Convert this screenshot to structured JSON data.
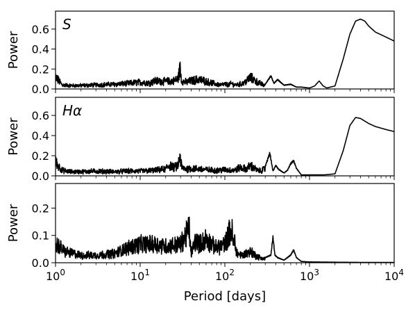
{
  "chart_data": [
    {
      "type": "line",
      "panel_label": "S",
      "ylabel": "Power",
      "xlabel": "",
      "xscale": "log",
      "xlim": [
        1,
        10000
      ],
      "ylim": [
        0,
        0.78
      ],
      "yticks": [
        0.0,
        0.2,
        0.4,
        0.6
      ],
      "ytick_labels": [
        "0.0",
        "0.2",
        "0.4",
        "0.6"
      ],
      "noise_level": 0.05,
      "series": [
        {
          "x": [
            1,
            1.2,
            1.5,
            2,
            3,
            5,
            7,
            10,
            13,
            15,
            20,
            25,
            28,
            29.5,
            31,
            35,
            40,
            50,
            60,
            70,
            80,
            90,
            100,
            110,
            120,
            130,
            150,
            170,
            200,
            250,
            300,
            350,
            380,
            420,
            500,
            600,
            700,
            800,
            1000,
            1150,
            1300,
            1450,
            1600,
            2000,
            2500,
            3000,
            3500,
            4000,
            4500,
            5000,
            6000,
            8000,
            10000
          ],
          "y": [
            0.18,
            0.06,
            0.05,
            0.05,
            0.06,
            0.07,
            0.08,
            0.1,
            0.09,
            0.12,
            0.11,
            0.12,
            0.15,
            0.3,
            0.12,
            0.1,
            0.12,
            0.14,
            0.11,
            0.09,
            0.07,
            0.06,
            0.07,
            0.06,
            0.08,
            0.06,
            0.07,
            0.09,
            0.17,
            0.09,
            0.05,
            0.14,
            0.06,
            0.1,
            0.04,
            0.05,
            0.02,
            0.02,
            0.01,
            0.03,
            0.08,
            0.03,
            0.01,
            0.03,
            0.3,
            0.55,
            0.68,
            0.7,
            0.68,
            0.63,
            0.57,
            0.52,
            0.48
          ]
        }
      ]
    },
    {
      "type": "line",
      "panel_label": "Hα",
      "ylabel": "Power",
      "xlabel": "",
      "xscale": "log",
      "xlim": [
        1,
        10000
      ],
      "ylim": [
        0,
        0.78
      ],
      "yticks": [
        0.0,
        0.2,
        0.4,
        0.6
      ],
      "ytick_labels": [
        "0.0",
        "0.2",
        "0.4",
        "0.6"
      ],
      "noise_level": 0.05,
      "series": [
        {
          "x": [
            1,
            1.2,
            1.5,
            2,
            3,
            5,
            7,
            10,
            15,
            20,
            22,
            25,
            28,
            29.5,
            31,
            35,
            40,
            50,
            60,
            80,
            100,
            130,
            150,
            180,
            200,
            250,
            300,
            340,
            370,
            400,
            430,
            500,
            550,
            600,
            650,
            700,
            800,
            1000,
            1500,
            2000,
            2500,
            3000,
            3500,
            4000,
            5000,
            6000,
            8000,
            10000
          ],
          "y": [
            0.2,
            0.08,
            0.06,
            0.06,
            0.07,
            0.06,
            0.07,
            0.07,
            0.08,
            0.1,
            0.16,
            0.12,
            0.15,
            0.3,
            0.12,
            0.1,
            0.11,
            0.1,
            0.09,
            0.08,
            0.09,
            0.08,
            0.12,
            0.1,
            0.15,
            0.07,
            0.1,
            0.24,
            0.05,
            0.11,
            0.07,
            0.03,
            0.06,
            0.13,
            0.16,
            0.08,
            0.01,
            0.01,
            0.01,
            0.02,
            0.25,
            0.5,
            0.58,
            0.57,
            0.52,
            0.49,
            0.46,
            0.44
          ]
        }
      ]
    },
    {
      "type": "line",
      "panel_label": "",
      "ylabel": "Power",
      "xlabel": "Period [days]",
      "xscale": "log",
      "xlim": [
        1,
        10000
      ],
      "ylim": [
        0,
        0.29
      ],
      "yticks": [
        0.0,
        0.1,
        0.2
      ],
      "ytick_labels": [
        "0.0",
        "0.1",
        "0.2"
      ],
      "xtick_labels": [
        "10^0",
        "10^1",
        "10^2",
        "10^3",
        "10^4"
      ],
      "noise_level": 0.025,
      "series": [
        {
          "x": [
            1,
            1.1,
            1.3,
            1.6,
            2,
            3,
            5,
            7,
            10,
            15,
            20,
            30,
            38,
            40,
            45,
            50,
            60,
            70,
            80,
            100,
            118,
            122,
            126,
            130,
            140,
            160,
            200,
            250,
            300,
            350,
            370,
            390,
            420,
            500,
            600,
            650,
            700,
            800,
            1000,
            2000,
            5000,
            10000
          ],
          "y": [
            0.1,
            0.09,
            0.06,
            0.05,
            0.04,
            0.04,
            0.05,
            0.08,
            0.1,
            0.1,
            0.09,
            0.1,
            0.18,
            0.05,
            0.12,
            0.1,
            0.13,
            0.1,
            0.08,
            0.1,
            0.18,
            0.16,
            0.09,
            0.12,
            0.05,
            0.04,
            0.06,
            0.03,
            0.02,
            0.03,
            0.1,
            0.03,
            0.02,
            0.01,
            0.03,
            0.05,
            0.02,
            0.005,
            0.003,
            0.002,
            0.001,
            0.001
          ]
        }
      ]
    }
  ]
}
